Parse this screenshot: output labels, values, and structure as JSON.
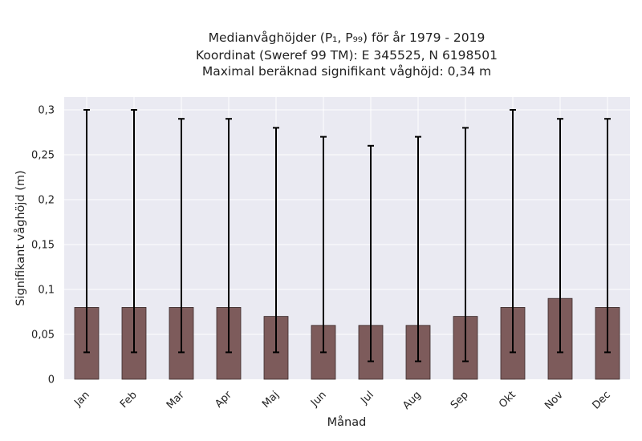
{
  "chart_data": {
    "type": "bar",
    "title_lines": [
      "Medianvåghöjder (P₁, P₉₉) för år 1979 - 2019",
      "Koordinat (Sweref 99 TM): E 345525, N 6198501",
      "Maximal beräknad signifikant våghöjd: 0,34 m"
    ],
    "xlabel": "Månad",
    "ylabel": "Signifikant våghöjd (m)",
    "categories": [
      "Jan",
      "Feb",
      "Mar",
      "Apr",
      "Maj",
      "Jun",
      "Jul",
      "Aug",
      "Sep",
      "Okt",
      "Nov",
      "Dec"
    ],
    "values": [
      0.08,
      0.08,
      0.08,
      0.08,
      0.07,
      0.06,
      0.06,
      0.06,
      0.07,
      0.08,
      0.09,
      0.08
    ],
    "error_low": [
      0.03,
      0.03,
      0.03,
      0.03,
      0.03,
      0.03,
      0.02,
      0.02,
      0.02,
      0.03,
      0.03,
      0.03
    ],
    "error_high": [
      0.3,
      0.3,
      0.29,
      0.29,
      0.28,
      0.27,
      0.26,
      0.27,
      0.28,
      0.3,
      0.29,
      0.29
    ],
    "ylim": [
      0,
      0.31
    ],
    "yticks": [
      0,
      0.05,
      0.1,
      0.15,
      0.2,
      0.25,
      0.3
    ],
    "ytick_labels": [
      "0",
      "0,05",
      "0,1",
      "0,15",
      "0,2",
      "0,25",
      "0,3"
    ],
    "grid": true,
    "colors": {
      "bar": "#7d5b5b",
      "bar_edge": "#3a2a2a",
      "error": "#000000",
      "background": "#eaeaf2",
      "grid": "#ffffff"
    }
  }
}
